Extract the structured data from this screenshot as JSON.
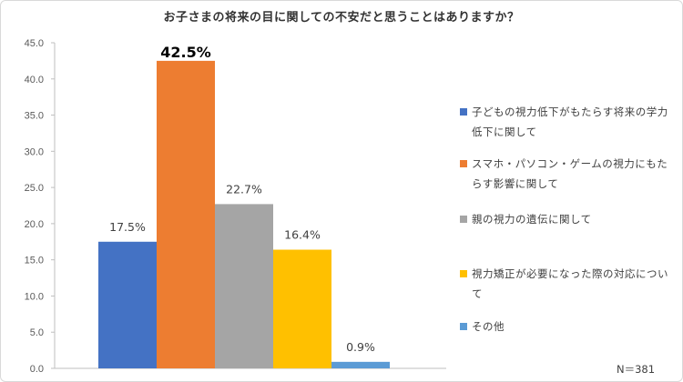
{
  "chart_data": {
    "type": "bar",
    "title": "お子さまの将来の目に関しての不安だと思うことはありますか？",
    "series": [
      {
        "name": "子どもの視力低下がもたらす将来の学力低下に関して",
        "value": 17.5,
        "label": "17.5%",
        "color": "#4472c4"
      },
      {
        "name": "スマホ・パソコン・ゲームの視力にもたらす影響に関して",
        "value": 42.5,
        "label": "42.5%",
        "color": "#ed7d31"
      },
      {
        "name": "親の視力の遺伝に関して",
        "value": 22.7,
        "label": "22.7%",
        "color": "#a5a5a5"
      },
      {
        "name": "視力矯正が必要になった際の対応について",
        "value": 16.4,
        "label": "16.4%",
        "color": "#ffc000"
      },
      {
        "name": "その他",
        "value": 0.9,
        "label": "0.9%",
        "color": "#5b9bd5"
      }
    ],
    "ylim": [
      0,
      45
    ],
    "yticks": [
      "0.0",
      "5.0",
      "10.0",
      "15.0",
      "20.0",
      "25.0",
      "30.0",
      "35.0",
      "40.0",
      "45.0"
    ],
    "grid": false,
    "legend_position": "right"
  },
  "note": "N＝381"
}
